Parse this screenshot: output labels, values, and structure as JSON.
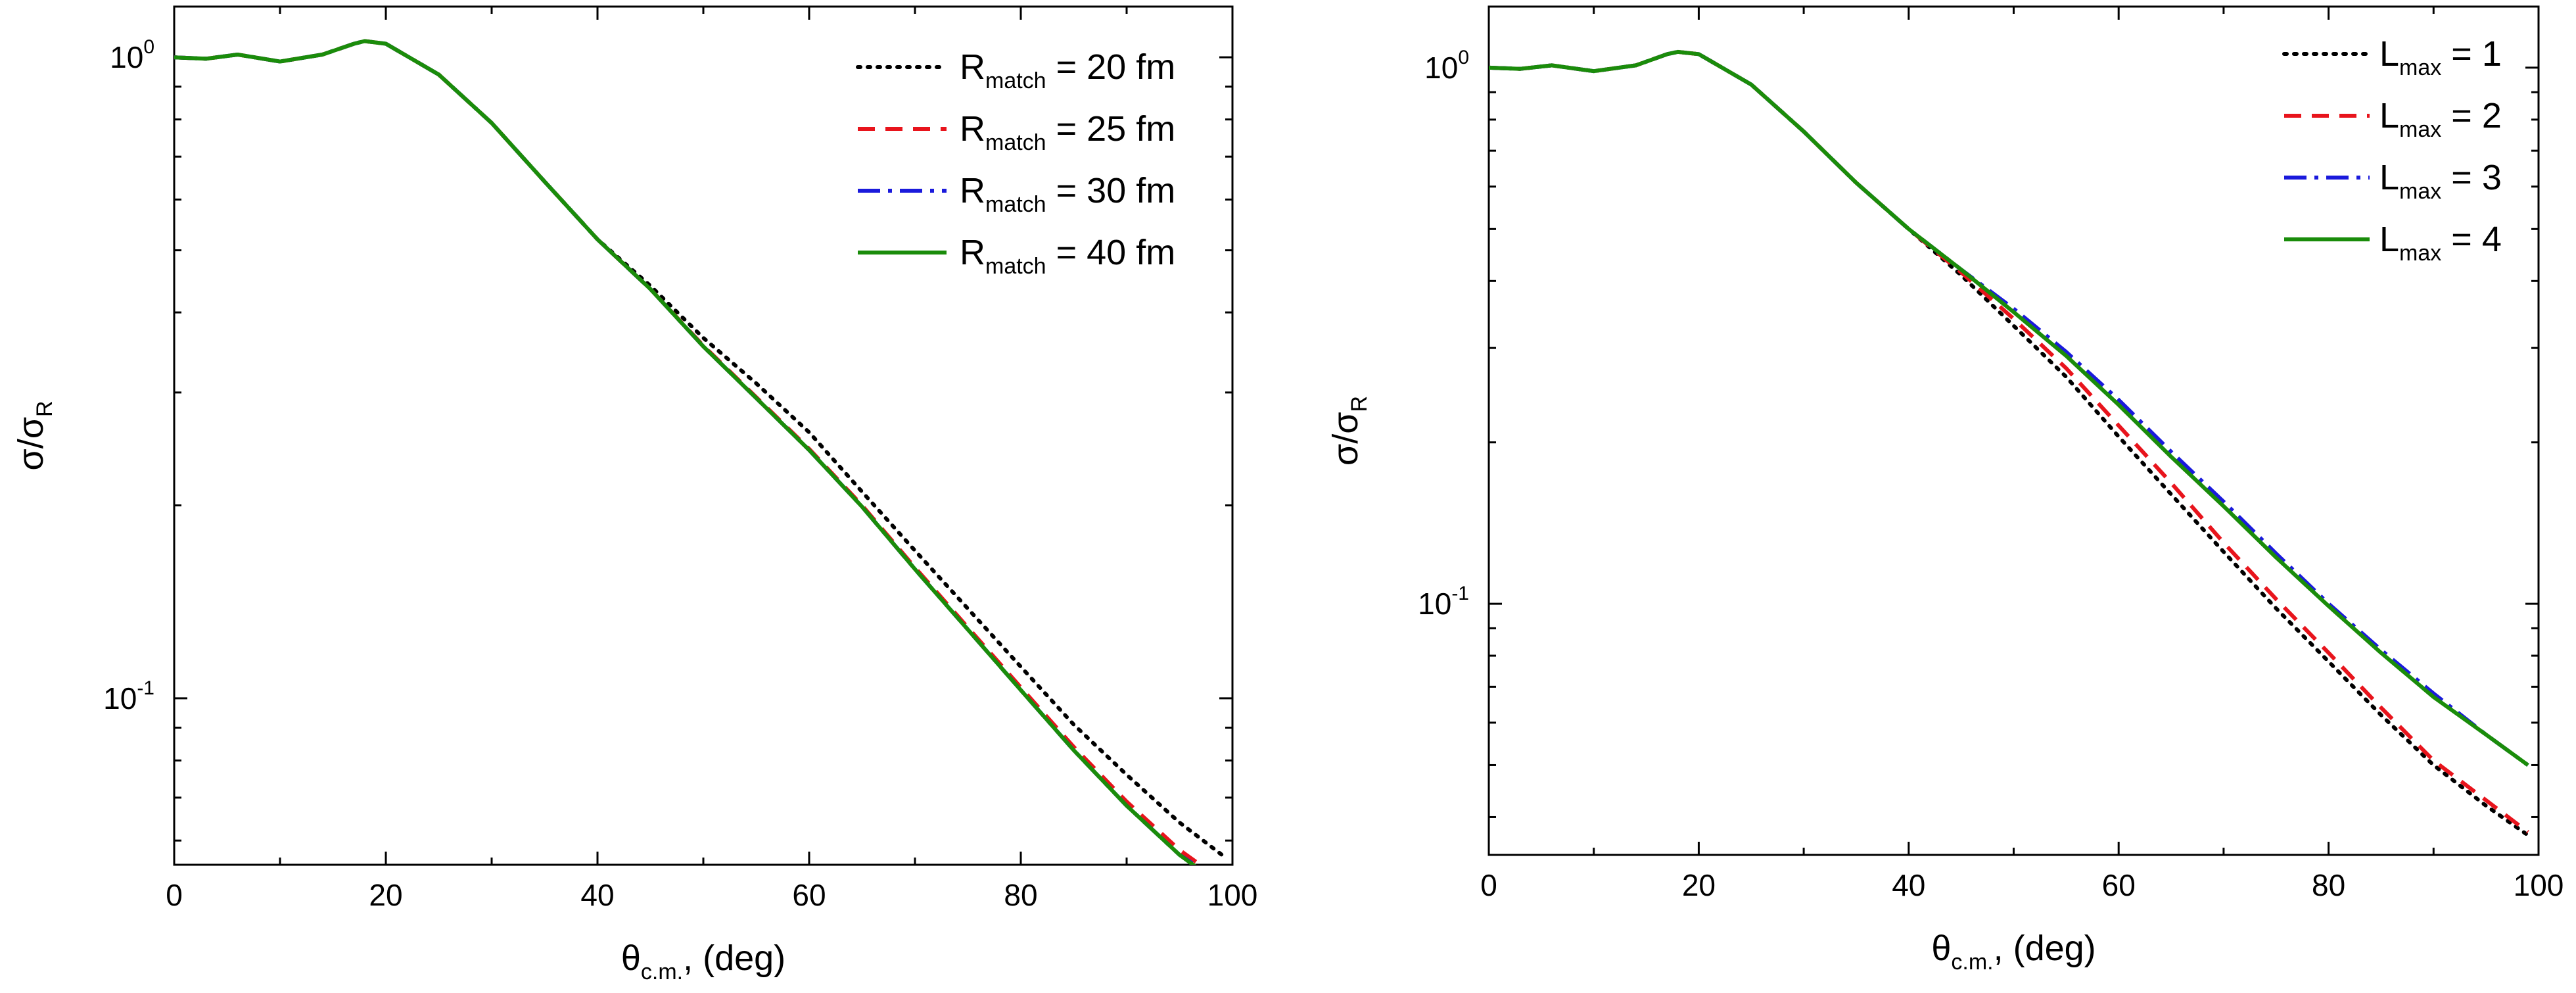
{
  "chart_data": [
    {
      "type": "line",
      "xlabel": "θc.m., (deg)",
      "ylabel": "σ/σR",
      "x_label_parts": {
        "symbol": "θ",
        "sub": "c.m.",
        "rest": ", (deg)"
      },
      "y_label_parts": {
        "symbol": "σ/σ",
        "sub": "R"
      },
      "xlim": [
        0,
        100
      ],
      "ylim": [
        0.055,
        1.2
      ],
      "yscale": "log",
      "grid": false,
      "legend_position": "top-right",
      "x_ticks": [
        "0",
        "20",
        "40",
        "60",
        "80",
        "100"
      ],
      "y_ticks": [
        {
          "value": 1.0,
          "base": "10",
          "exp": "0"
        },
        {
          "value": 0.1,
          "base": "10",
          "exp": "-1"
        }
      ],
      "series": [
        {
          "name": "Rmatch = 20 fm",
          "label_parts": {
            "main": "R",
            "sub": "match",
            "rest": " = 20 fm"
          },
          "color": "#000000",
          "style": "dotted",
          "x": [
            0,
            3,
            6,
            10,
            14,
            17,
            18,
            20,
            25,
            30,
            35,
            40,
            45,
            50,
            55,
            60,
            65,
            70,
            75,
            80,
            85,
            90,
            95,
            99
          ],
          "y": [
            1.0,
            0.995,
            1.01,
            0.985,
            1.01,
            1.05,
            1.06,
            1.05,
            0.94,
            0.79,
            0.64,
            0.52,
            0.44,
            0.365,
            0.31,
            0.26,
            0.21,
            0.17,
            0.138,
            0.112,
            0.091,
            0.076,
            0.064,
            0.057
          ]
        },
        {
          "name": "Rmatch = 25 fm",
          "label_parts": {
            "main": "R",
            "sub": "match",
            "rest": " = 25 fm"
          },
          "color": "#e8141c",
          "style": "dashed",
          "x": [
            0,
            3,
            6,
            10,
            14,
            17,
            18,
            20,
            25,
            30,
            35,
            40,
            45,
            50,
            55,
            60,
            65,
            70,
            75,
            80,
            85,
            90,
            95,
            99
          ],
          "y": [
            1.0,
            0.995,
            1.01,
            0.985,
            1.01,
            1.05,
            1.06,
            1.05,
            0.94,
            0.79,
            0.64,
            0.52,
            0.435,
            0.355,
            0.295,
            0.245,
            0.2,
            0.16,
            0.129,
            0.104,
            0.084,
            0.069,
            0.058,
            0.052
          ]
        },
        {
          "name": "Rmatch = 30 fm",
          "label_parts": {
            "main": "R",
            "sub": "match",
            "rest": " = 30 fm"
          },
          "color": "#1a1adc",
          "style": "dashdot",
          "x": [
            0,
            3,
            6,
            10,
            14,
            17,
            18,
            20,
            25,
            30,
            35,
            40,
            45,
            50,
            55,
            60,
            65,
            70,
            75,
            80,
            85,
            90,
            95,
            99
          ],
          "y": [
            1.0,
            0.995,
            1.01,
            0.985,
            1.01,
            1.05,
            1.06,
            1.05,
            0.94,
            0.79,
            0.64,
            0.52,
            0.435,
            0.354,
            0.294,
            0.244,
            0.199,
            0.159,
            0.128,
            0.103,
            0.083,
            0.068,
            0.057,
            0.0515
          ]
        },
        {
          "name": "Rmatch = 40 fm",
          "label_parts": {
            "main": "R",
            "sub": "match",
            "rest": " = 40 fm"
          },
          "color": "#1a8c0a",
          "style": "solid",
          "x": [
            0,
            3,
            6,
            10,
            14,
            17,
            18,
            20,
            25,
            30,
            35,
            40,
            45,
            50,
            55,
            60,
            65,
            70,
            75,
            80,
            85,
            90,
            95,
            99
          ],
          "y": [
            1.0,
            0.995,
            1.01,
            0.985,
            1.01,
            1.05,
            1.06,
            1.05,
            0.94,
            0.79,
            0.64,
            0.52,
            0.435,
            0.354,
            0.294,
            0.244,
            0.199,
            0.159,
            0.128,
            0.103,
            0.083,
            0.068,
            0.057,
            0.051
          ]
        }
      ]
    },
    {
      "type": "line",
      "xlabel": "θc.m., (deg)",
      "ylabel": "σ/σR",
      "x_label_parts": {
        "symbol": "θ",
        "sub": "c.m.",
        "rest": ", (deg)"
      },
      "y_label_parts": {
        "symbol": "σ/σ",
        "sub": "R"
      },
      "xlim": [
        0,
        100
      ],
      "ylim": [
        0.034,
        1.3
      ],
      "yscale": "log",
      "grid": false,
      "legend_position": "top-right",
      "x_ticks": [
        "0",
        "20",
        "40",
        "60",
        "80",
        "100"
      ],
      "y_ticks": [
        {
          "value": 1.0,
          "base": "10",
          "exp": "0"
        },
        {
          "value": 0.1,
          "base": "10",
          "exp": "-1"
        }
      ],
      "series": [
        {
          "name": "Lmax = 1",
          "label_parts": {
            "main": "L",
            "sub": "max",
            "rest": " = 1"
          },
          "color": "#000000",
          "style": "dotted",
          "x": [
            0,
            3,
            6,
            10,
            14,
            17,
            18,
            20,
            25,
            30,
            35,
            40,
            45,
            50,
            55,
            60,
            65,
            70,
            75,
            80,
            85,
            90,
            95,
            99
          ],
          "y": [
            1.0,
            0.995,
            1.01,
            0.985,
            1.01,
            1.06,
            1.07,
            1.06,
            0.93,
            0.76,
            0.61,
            0.5,
            0.41,
            0.33,
            0.265,
            0.205,
            0.16,
            0.125,
            0.098,
            0.078,
            0.062,
            0.05,
            0.042,
            0.037
          ]
        },
        {
          "name": "Lmax = 2",
          "label_parts": {
            "main": "L",
            "sub": "max",
            "rest": " = 2"
          },
          "color": "#e8141c",
          "style": "dashed",
          "x": [
            0,
            3,
            6,
            10,
            14,
            17,
            18,
            20,
            25,
            30,
            35,
            40,
            45,
            50,
            55,
            60,
            65,
            70,
            75,
            80,
            85,
            90,
            95,
            99
          ],
          "y": [
            1.0,
            0.995,
            1.01,
            0.985,
            1.01,
            1.06,
            1.07,
            1.06,
            0.93,
            0.76,
            0.61,
            0.5,
            0.415,
            0.34,
            0.275,
            0.215,
            0.168,
            0.13,
            0.102,
            0.081,
            0.064,
            0.051,
            0.043,
            0.0375
          ]
        },
        {
          "name": "Lmax = 3",
          "label_parts": {
            "main": "L",
            "sub": "max",
            "rest": " = 3"
          },
          "color": "#1a1adc",
          "style": "dashdot",
          "x": [
            0,
            3,
            6,
            10,
            14,
            17,
            18,
            20,
            25,
            30,
            35,
            40,
            45,
            50,
            55,
            60,
            65,
            70,
            75,
            80,
            85,
            90,
            95,
            99
          ],
          "y": [
            1.0,
            0.995,
            1.01,
            0.985,
            1.01,
            1.06,
            1.07,
            1.06,
            0.93,
            0.76,
            0.61,
            0.5,
            0.42,
            0.355,
            0.295,
            0.24,
            0.192,
            0.155,
            0.124,
            0.1,
            0.082,
            0.068,
            0.057,
            0.05
          ]
        },
        {
          "name": "Lmax = 4",
          "label_parts": {
            "main": "L",
            "sub": "max",
            "rest": " = 4"
          },
          "color": "#1a8c0a",
          "style": "solid",
          "x": [
            0,
            3,
            6,
            10,
            14,
            17,
            18,
            20,
            25,
            30,
            35,
            40,
            45,
            50,
            55,
            60,
            65,
            70,
            75,
            80,
            85,
            90,
            95,
            99
          ],
          "y": [
            1.0,
            0.995,
            1.01,
            0.985,
            1.01,
            1.06,
            1.07,
            1.06,
            0.93,
            0.76,
            0.61,
            0.5,
            0.42,
            0.35,
            0.29,
            0.235,
            0.188,
            0.152,
            0.122,
            0.099,
            0.081,
            0.067,
            0.057,
            0.05
          ]
        }
      ]
    }
  ]
}
